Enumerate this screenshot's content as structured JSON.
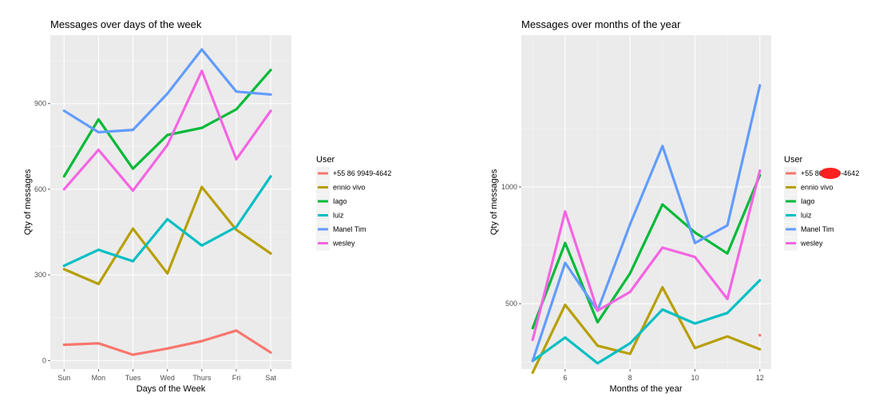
{
  "chart_data": [
    {
      "type": "line",
      "title": "Messages over days of the week",
      "xlabel": "Days of the Week",
      "ylabel": "Qty of messages",
      "categories": [
        "Sun",
        "Mon",
        "Tues",
        "Wed",
        "Thurs",
        "Fri",
        "Sat"
      ],
      "yticks": [
        0,
        300,
        600,
        900
      ],
      "ylim": [
        -30,
        1140
      ],
      "grid": true,
      "legend": {
        "title": "User",
        "position": "right"
      },
      "series": [
        {
          "name": "+55 86 9949-4642",
          "color": "#F8766D",
          "values": [
            55,
            60,
            20,
            42,
            68,
            105,
            28
          ]
        },
        {
          "name": "ennio vivo",
          "color": "#B79F00",
          "values": [
            320,
            268,
            462,
            305,
            608,
            458,
            375
          ]
        },
        {
          "name": "Iago",
          "color": "#00BA38",
          "values": [
            645,
            845,
            672,
            790,
            815,
            880,
            1018
          ]
        },
        {
          "name": "luiz",
          "color": "#00BFC4",
          "values": [
            332,
            388,
            348,
            495,
            403,
            468,
            645
          ]
        },
        {
          "name": "Manel Tim",
          "color": "#619CFF",
          "values": [
            875,
            800,
            808,
            935,
            1090,
            942,
            932
          ]
        },
        {
          "name": "wesley",
          "color": "#F564E3",
          "values": [
            600,
            738,
            595,
            755,
            1015,
            705,
            875
          ]
        }
      ]
    },
    {
      "type": "line",
      "title": "Messages over months of the year",
      "xlabel": "Months of the year",
      "ylabel": "Qty of messages",
      "x": [
        5,
        6,
        7,
        8,
        9,
        10,
        11,
        12
      ],
      "xticks": [
        6,
        8,
        10,
        12
      ],
      "yticks": [
        500,
        1000
      ],
      "xlim": [
        4.65,
        12.35
      ],
      "ylim": [
        220,
        1650
      ],
      "grid": true,
      "legend": {
        "title": "User",
        "position": "right"
      },
      "series": [
        {
          "name": "+55 86 9949-4642",
          "color": "#F8766D",
          "points": [
            [
              12,
              365
            ]
          ]
        },
        {
          "name": "ennio vivo",
          "color": "#B79F00",
          "values": [
            205,
            495,
            320,
            285,
            570,
            310,
            360,
            305
          ]
        },
        {
          "name": "Iago",
          "color": "#00BA38",
          "values": [
            395,
            760,
            420,
            630,
            925,
            805,
            715,
            1050
          ]
        },
        {
          "name": "luiz",
          "color": "#00BFC4",
          "values": [
            255,
            355,
            245,
            330,
            475,
            415,
            460,
            600
          ]
        },
        {
          "name": "Manel Tim",
          "color": "#619CFF",
          "values": [
            255,
            675,
            470,
            840,
            1175,
            760,
            835,
            1435
          ]
        },
        {
          "name": "wesley",
          "color": "#F564E3",
          "values": [
            345,
            895,
            470,
            550,
            740,
            700,
            520,
            1070
          ]
        }
      ]
    }
  ]
}
